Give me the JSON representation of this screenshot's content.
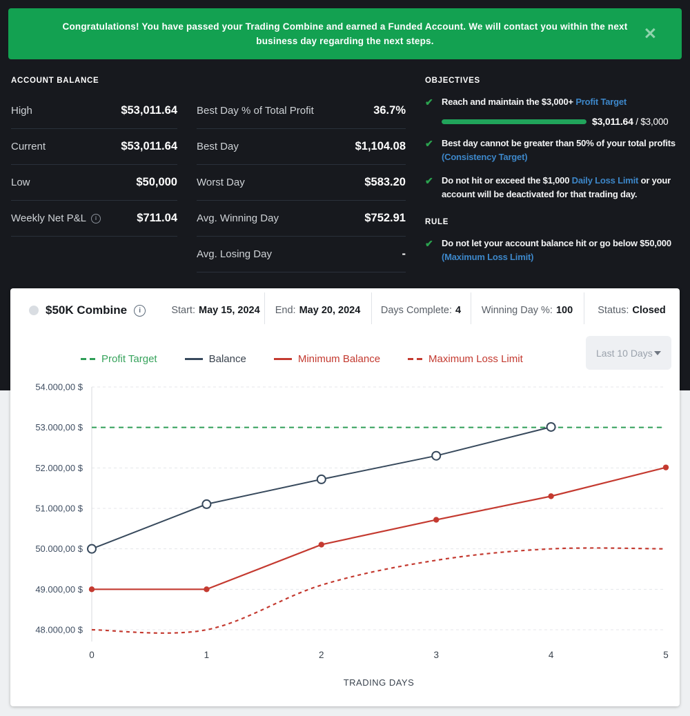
{
  "icons": {
    "close": "✕",
    "check": "✔"
  },
  "colors": {
    "banner_green": "#13a151",
    "link_blue": "#3d87c9",
    "check_green": "#2ba24f",
    "progress_green": "#21a45b",
    "balance_line": "#37495c",
    "loss_red": "#c43a30",
    "target_green": "#2f9e57"
  },
  "banner": {
    "text": "Congratulations! You have passed your Trading Combine and earned a Funded Account. We will contact you within the next business day regarding the next steps."
  },
  "account_balance": {
    "title": "ACCOUNT BALANCE",
    "rows": [
      {
        "label": "High",
        "value": "$53,011.64",
        "info": false
      },
      {
        "label": "Current",
        "value": "$53,011.64",
        "info": false
      },
      {
        "label": "Low",
        "value": "$50,000",
        "info": false
      },
      {
        "label": "Weekly Net P&L",
        "value": "$711.04",
        "info": true
      }
    ]
  },
  "day_stats": {
    "rows": [
      {
        "label": "Best Day % of Total Profit",
        "value": "36.7%"
      },
      {
        "label": "Best Day",
        "value": "$1,104.08"
      },
      {
        "label": "Worst Day",
        "value": "$583.20"
      },
      {
        "label": "Avg. Winning Day",
        "value": "$752.91"
      },
      {
        "label": "Avg. Losing Day",
        "value": "-"
      }
    ]
  },
  "objectives": {
    "title": "OBJECTIVES",
    "items": [
      {
        "segments": [
          {
            "text": "Reach and maintain the $3,000+ "
          },
          {
            "text": "Profit Target",
            "link": true
          }
        ],
        "progress": {
          "value_text": "$3,011.64",
          "rest_text": " / $3,000",
          "percent": 100
        }
      },
      {
        "segments": [
          {
            "text": "Best day cannot be greater than 50% of your total profits"
          },
          {
            "br": true
          },
          {
            "text": "(Consistency Target)",
            "link": true
          }
        ]
      },
      {
        "segments": [
          {
            "text": "Do not hit or exceed the $1,000 "
          },
          {
            "text": "Daily Loss Limit",
            "link": true
          },
          {
            "text": " or your"
          },
          {
            "br": true
          },
          {
            "text": "account will be deactivated for that trading day."
          }
        ]
      }
    ]
  },
  "rule": {
    "title": "RULE",
    "items": [
      {
        "segments": [
          {
            "text": "Do not let your account balance hit or go below $50,000"
          },
          {
            "br": true
          },
          {
            "text": "(Maximum Loss Limit)",
            "link": true
          }
        ]
      }
    ]
  },
  "chart_card": {
    "title": "$50K Combine",
    "stats": [
      {
        "label": "Start:",
        "value": "May 15, 2024"
      },
      {
        "label": "End:",
        "value": "May 20, 2024"
      },
      {
        "label": "Days Complete:",
        "value": "4"
      },
      {
        "label": "Winning Day %:",
        "value": "100"
      },
      {
        "label": "Status:",
        "value": "Closed"
      }
    ],
    "legend": [
      {
        "name": "Profit Target",
        "color": "#37a35c",
        "line_color": "#2f9e57",
        "style": "dashed"
      },
      {
        "name": "Balance",
        "color": "#3a434e",
        "line_color": "#37495c",
        "style": "solid"
      },
      {
        "name": "Minimum Balance",
        "color": "#c3392f",
        "line_color": "#c43a30",
        "style": "solid"
      },
      {
        "name": "Maximum Loss Limit",
        "color": "#c3392f",
        "line_color": "#c43a30",
        "style": "dashed"
      }
    ],
    "range_dropdown": {
      "value": "Last 10 Days"
    }
  },
  "chart_data": {
    "type": "line",
    "title": "$50K Combine",
    "xlabel": "TRADING DAYS",
    "ylabel": "",
    "xlim": [
      0,
      5
    ],
    "ylim": [
      48000,
      54000
    ],
    "grid": true,
    "legend_position": "top",
    "x_ticks": [
      0,
      1,
      2,
      3,
      4,
      5
    ],
    "y_ticks": [
      {
        "value": 54000,
        "label": "54.000,00 $"
      },
      {
        "value": 53000,
        "label": "53.000,00 $"
      },
      {
        "value": 52000,
        "label": "52.000,00 $"
      },
      {
        "value": 51000,
        "label": "51.000,00 $"
      },
      {
        "value": 50000,
        "label": "50.000,00 $"
      },
      {
        "value": 49000,
        "label": "49.000,00 $"
      },
      {
        "value": 48000,
        "label": "48.000,00 $"
      }
    ],
    "series": [
      {
        "name": "Profit Target",
        "color": "#2f9e57",
        "dash": "7 6",
        "width": 2,
        "marker": "none",
        "smooth": false,
        "x": [
          0,
          5
        ],
        "values": [
          53000,
          53000
        ]
      },
      {
        "name": "Balance",
        "color": "#37495c",
        "dash": null,
        "width": 2,
        "marker": "open-circle",
        "smooth": false,
        "x": [
          0,
          1,
          2,
          3,
          4
        ],
        "values": [
          50000,
          51104.08,
          51717.4,
          52300.6,
          53011.64
        ]
      },
      {
        "name": "Minimum Balance",
        "color": "#c43a30",
        "dash": null,
        "width": 2.2,
        "marker": "dot",
        "smooth": false,
        "x": [
          0,
          1,
          2,
          3,
          4,
          5
        ],
        "values": [
          49000,
          49000,
          50104.08,
          50717.4,
          51300.6,
          52011.64
        ]
      },
      {
        "name": "Maximum Loss Limit",
        "color": "#c43a30",
        "dash": "5 5",
        "width": 2.2,
        "marker": "none",
        "smooth": true,
        "x": [
          0,
          1,
          2,
          3,
          4,
          5
        ],
        "values": [
          48000,
          48000,
          49104.08,
          49717.4,
          50000,
          50000
        ]
      }
    ]
  }
}
